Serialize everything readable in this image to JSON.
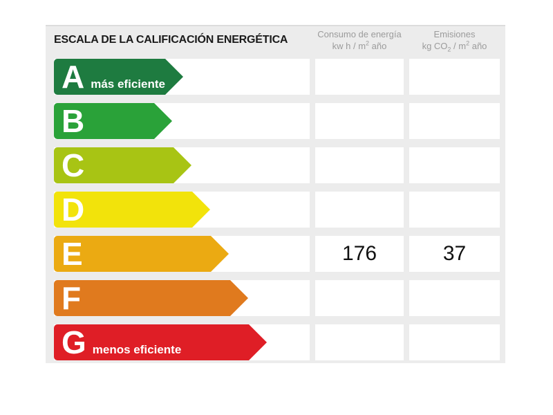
{
  "title": "ESCALA DE LA CALIFICACIÓN ENERGÉTICA",
  "columns": {
    "consumo": {
      "line1": "Consumo de energía",
      "line2_pre": "kw h / m",
      "line2_sup": "2",
      "line2_post": " año"
    },
    "emisiones": {
      "line1": "Emisiones",
      "line2_pre": "kg CO",
      "line2_sub": "2",
      "line2_mid": " / m",
      "line2_sup": "2",
      "line2_post": " año"
    }
  },
  "scale": {
    "rows": [
      {
        "letter": "A",
        "label": "más eficiente",
        "color": "#1e7b40",
        "arrow_width": 169
      },
      {
        "letter": "B",
        "label": "",
        "color": "#2aa239",
        "arrow_width": 197
      },
      {
        "letter": "C",
        "label": "",
        "color": "#a8c414",
        "arrow_width": 225
      },
      {
        "letter": "D",
        "label": "",
        "color": "#f2e30b",
        "arrow_width": 252
      },
      {
        "letter": "E",
        "label": "",
        "color": "#ebaa12",
        "arrow_width": 279
      },
      {
        "letter": "F",
        "label": "",
        "color": "#e07a1e",
        "arrow_width": 307
      },
      {
        "letter": "G",
        "label": "menos eficiente",
        "color": "#df1e26",
        "arrow_width": 334
      }
    ]
  },
  "values": {
    "rating_row": "E",
    "consumo": "176",
    "emisiones": "37"
  },
  "chart_data": {
    "type": "table",
    "title": "ESCALA DE LA CALIFICACIÓN ENERGÉTICA",
    "columns": [
      "Consumo de energía kw h / m² año",
      "Emisiones kg CO₂ / m² año"
    ],
    "scale_categories": [
      "A (más eficiente)",
      "B",
      "C",
      "D",
      "E",
      "F",
      "G (menos eficiente)"
    ],
    "scale_colors": [
      "#1e7b40",
      "#2aa239",
      "#a8c414",
      "#f2e30b",
      "#ebaa12",
      "#e07a1e",
      "#df1e26"
    ],
    "selected_rating": "E",
    "values": {
      "consumo_kwh_m2_ano": 176,
      "emisiones_kg_co2_m2_ano": 37
    },
    "legend_position": "none",
    "grid": false
  }
}
